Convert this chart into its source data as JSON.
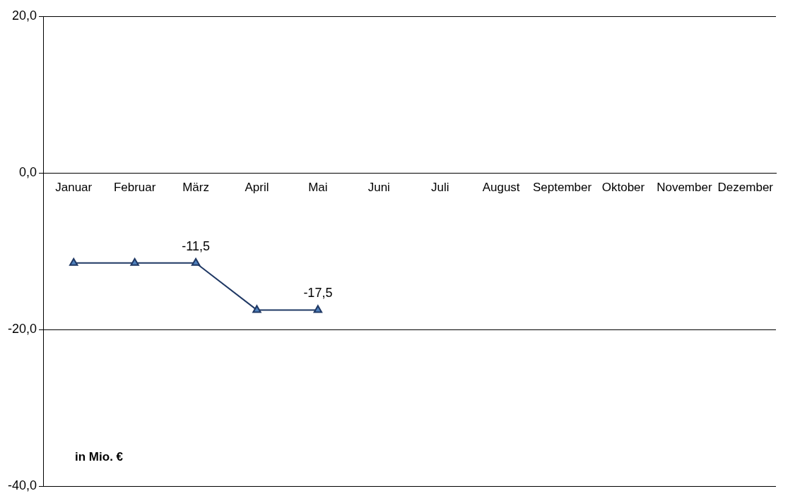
{
  "chart_data": {
    "type": "line",
    "categories": [
      "Januar",
      "Februar",
      "März",
      "April",
      "Mai",
      "Juni",
      "Juli",
      "August",
      "September",
      "Oktober",
      "November",
      "Dezember"
    ],
    "series": [
      {
        "color": "#1f3864",
        "values": [
          -11.5,
          -11.5,
          -11.5,
          -17.5,
          -17.5,
          null,
          null,
          null,
          null,
          null,
          null,
          null
        ],
        "value_labels": [
          null,
          null,
          "-11,5",
          null,
          "-17,5",
          null,
          null,
          null,
          null,
          null,
          null,
          null
        ]
      }
    ],
    "ylim": [
      -40,
      20
    ],
    "yticks": [
      {
        "value": -40,
        "label": "-40,0"
      },
      {
        "value": -20,
        "label": "-20,0"
      },
      {
        "value": 0,
        "label": "0,0"
      },
      {
        "value": 20,
        "label": "20,0"
      }
    ],
    "grid": "y",
    "marker": "triangle",
    "legend": false,
    "annotations": [
      "in Mio. €"
    ]
  }
}
